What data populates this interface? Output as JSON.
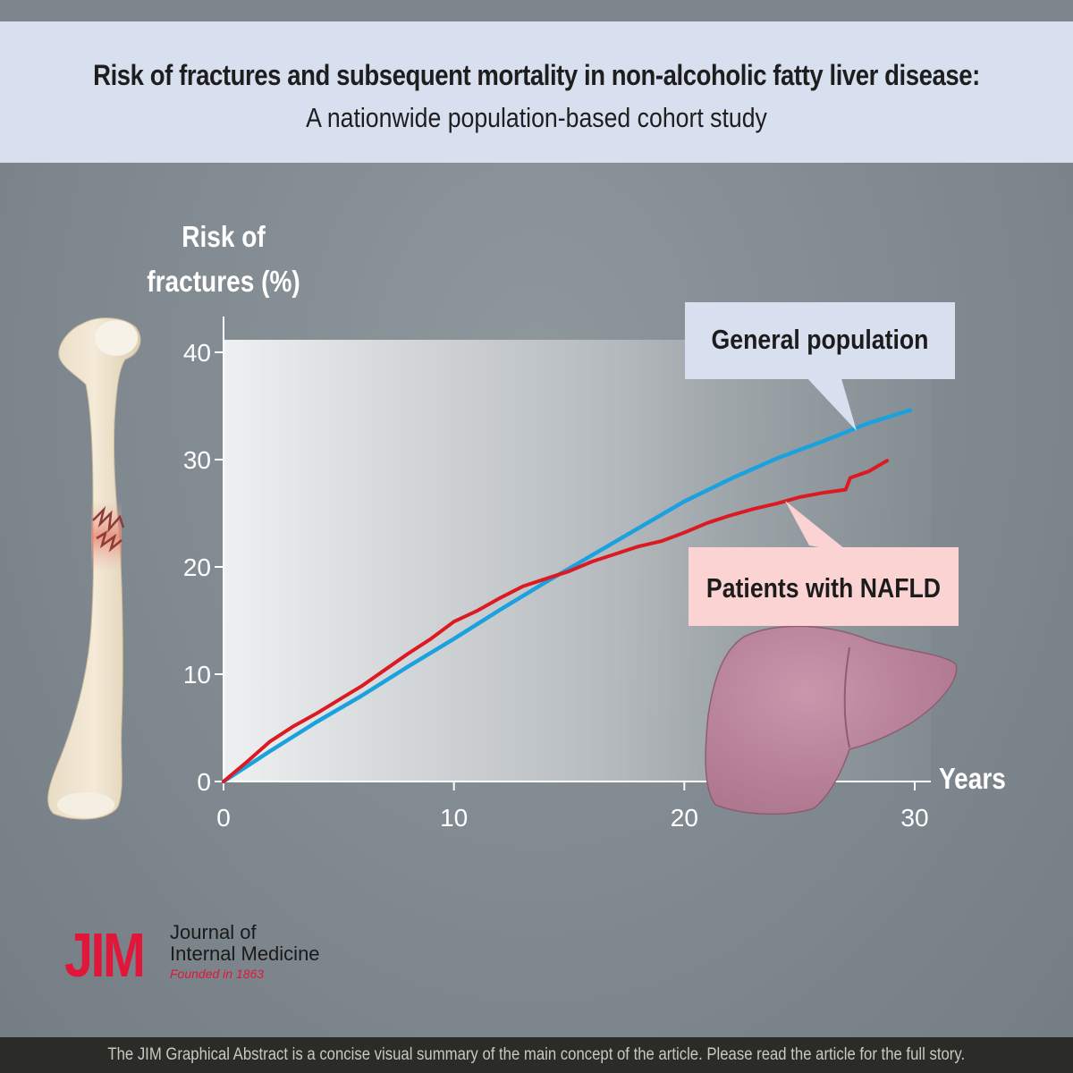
{
  "header": {
    "title": "Risk of fractures and subsequent mortality in non-alcoholic fatty liver disease:",
    "subtitle": "A nationwide population-based cohort study"
  },
  "chart_data": {
    "type": "line",
    "ylabel_line1": "Risk of",
    "ylabel_line2": "fractures (%)",
    "xlabel": "Years",
    "xlim": [
      0,
      30
    ],
    "ylim": [
      0,
      40
    ],
    "xticks": [
      "0",
      "10",
      "20",
      "30"
    ],
    "yticks": [
      "0",
      "10",
      "20",
      "30",
      "40"
    ],
    "grid": false,
    "series": [
      {
        "name": "General population",
        "color": "#1ba2de",
        "x": [
          0,
          2,
          4,
          6,
          8,
          10,
          12,
          14,
          16,
          18,
          20,
          22,
          24,
          26,
          28,
          29.8
        ],
        "y": [
          0,
          2.8,
          5.5,
          8.0,
          10.7,
          13.3,
          16.0,
          18.6,
          21.1,
          23.6,
          26.1,
          28.2,
          30.1,
          31.7,
          33.4,
          34.6
        ]
      },
      {
        "name": "Patients with NAFLD",
        "color": "#db1a22",
        "x": [
          0,
          1,
          2,
          3,
          4,
          5,
          6,
          7,
          8,
          9,
          10,
          11,
          12,
          13,
          14,
          15,
          16,
          17,
          18,
          19,
          20,
          21,
          22,
          23,
          24,
          25,
          26,
          27,
          27.2,
          28,
          28.8
        ],
        "y": [
          0,
          1.8,
          3.7,
          5.1,
          6.3,
          7.6,
          8.9,
          10.4,
          11.9,
          13.3,
          14.9,
          15.9,
          17.1,
          18.2,
          18.9,
          19.6,
          20.5,
          21.2,
          21.9,
          22.4,
          23.2,
          24.1,
          24.8,
          25.4,
          25.9,
          26.5,
          26.9,
          27.2,
          28.3,
          28.9,
          29.9
        ]
      }
    ],
    "annotations": [
      {
        "text": "General population",
        "fill": "#d8e0ef"
      },
      {
        "text": "Patients with NAFLD",
        "fill": "#fad3d2"
      }
    ]
  },
  "logo": {
    "mark": "JIM",
    "name_line1": "Journal of",
    "name_line2": "Internal Medicine",
    "founded": "Founded in 1863"
  },
  "footer": {
    "text": "The JIM Graphical Abstract is a concise visual summary of the main concept of the article. Please read the article for the full story."
  },
  "colors": {
    "header_bg": "#d8e0ef",
    "background": "#7d878d",
    "general_population": "#1ba2de",
    "nafld": "#db1a22",
    "brand": "#e0173a"
  },
  "icons": [
    "femur-bone-fracture-icon",
    "liver-icon"
  ]
}
